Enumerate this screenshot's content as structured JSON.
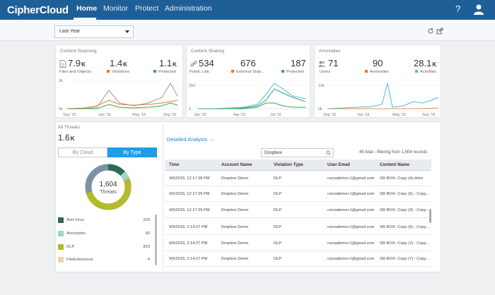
{
  "app": {
    "logo": "CipherCloud",
    "help_label": "?"
  },
  "nav": [
    {
      "label": "Home"
    },
    {
      "label": "Monitor"
    },
    {
      "label": "Protect"
    },
    {
      "label": "Administration"
    }
  ],
  "filter": {
    "range": "Last Year"
  },
  "panels": {
    "scanning": {
      "title": "Content Scanning",
      "m1": {
        "value": "7.9",
        "unit": "K",
        "label": "Files and Objects"
      },
      "m2": {
        "value": "1.4",
        "unit": "K",
        "label": "Violations",
        "color": "#e8772e"
      },
      "m3": {
        "value": "1.1",
        "unit": "K",
        "label": "Protected",
        "color": "#3aa655"
      },
      "yticks": [
        "2k",
        "0k"
      ],
      "xticks": [
        "Sep '15",
        "Jan '16",
        "May '16",
        "Sep '16"
      ]
    },
    "sharing": {
      "title": "Content Sharing",
      "m1": {
        "value": "534",
        "label": "Public Link"
      },
      "m2": {
        "value": "676",
        "label": "External Shar...",
        "color": "#e8772e"
      },
      "m3": {
        "value": "187",
        "label": "Protected",
        "color": "#3aa655"
      },
      "yticks": [
        "250",
        "0"
      ],
      "xticks": [
        "Jan '16",
        "Apr '16",
        "Jul '16"
      ]
    },
    "anomalies": {
      "title": "Anomalies",
      "m1": {
        "value": "71",
        "label": "Users"
      },
      "m2": {
        "value": "90",
        "label": "Anomalies",
        "color": "#e8772e"
      },
      "m3": {
        "value": "28.1",
        "unit": "K",
        "label": "Activities",
        "color": "#4fb8e0"
      },
      "yticks": [
        "10k",
        "0k"
      ],
      "xticks": [
        "Sep '15",
        "Jan '16",
        "May '16",
        "Sep '16"
      ]
    }
  },
  "threats": {
    "title": "All Threats",
    "total": "1.6",
    "total_unit": "K",
    "toggle": [
      "By Cloud",
      "By Type"
    ],
    "donut_value": "1,604",
    "donut_label": "Threats",
    "legend": [
      {
        "label": "Anti-Virus",
        "value": "209",
        "color": "#2e6b4e"
      },
      {
        "label": "Anomalies",
        "value": "90",
        "color": "#9fd8c8"
      },
      {
        "label": "DLP",
        "value": "829",
        "color": "#b5b92a"
      },
      {
        "label": "FileExtensions",
        "value": "4",
        "color": "#e9d6a6"
      }
    ]
  },
  "analysis": {
    "link": "Detailed Analysis →",
    "search_value": "Dropbox",
    "total_text": "45 total - filtering from 1,604 records",
    "columns": [
      "Time",
      "Account Name",
      "Violation Type",
      "User Email",
      "Content Name"
    ],
    "rows": [
      [
        "9/6/2016, 12:17:28 PM",
        "Dropbox Demo",
        "DLP",
        "corsademo+1@gmail.com",
        "SR-BOX- Copy (4).dotm"
      ],
      [
        "9/6/2016, 12:17:29 PM",
        "Dropbox Demo",
        "DLP",
        "corsademo+1@gmail.com",
        "SR-BOX- Copy (5) - Copy..."
      ],
      [
        "9/6/2016, 12:17:29 PM",
        "Dropbox Demo",
        "DLP",
        "corsademo+1@gmail.com",
        "SR-BOX- Copy (3) - Copy..."
      ],
      [
        "9/6/2016, 2:14:27 PM",
        "Dropbox Demo",
        "DLP",
        "corsademo+1@gmail.com",
        "SR-BOX- Copy (6) - Copy..."
      ],
      [
        "9/6/2016, 2:14:27 PM",
        "Dropbox Demo",
        "DLP",
        "corsademo+1@gmail.com",
        "SR-BOX- Copy (2) - Copy..."
      ],
      [
        "9/6/2016, 2:14:27 PM",
        "Dropbox Demo",
        "DLP",
        "corsademo+1@gmail.com",
        "SR-BOX- Copy (7) - Copy..."
      ]
    ]
  }
}
